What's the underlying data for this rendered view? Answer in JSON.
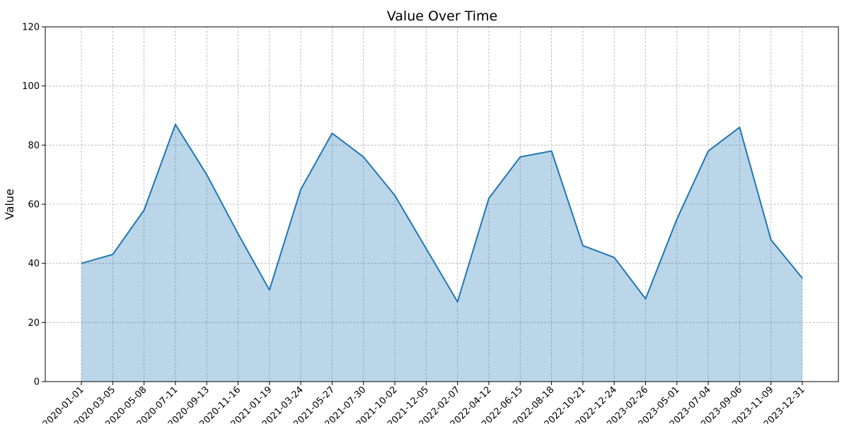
{
  "chart_data": {
    "type": "area",
    "title": "Value Over Time",
    "xlabel": "",
    "ylabel": "Value",
    "ylim": [
      0,
      120
    ],
    "yticks": [
      0,
      20,
      40,
      60,
      80,
      100,
      120
    ],
    "grid": true,
    "legend": "none",
    "line_color": "#1f77b4",
    "fill_color": "#1f77b4",
    "fill_alpha": 0.3,
    "x": [
      "2020-01-01",
      "2020-03-05",
      "2020-05-08",
      "2020-07-11",
      "2020-09-13",
      "2020-11-16",
      "2021-01-19",
      "2021-03-24",
      "2021-05-27",
      "2021-07-30",
      "2021-10-02",
      "2021-12-05",
      "2022-02-07",
      "2022-04-12",
      "2022-06-15",
      "2022-08-18",
      "2022-10-21",
      "2022-12-24",
      "2023-02-26",
      "2023-05-01",
      "2023-07-04",
      "2023-09-06",
      "2023-11-09",
      "2023-12-31"
    ],
    "values": [
      40,
      43,
      58,
      87,
      70,
      50,
      31,
      65,
      84,
      76,
      63,
      45,
      27,
      62,
      76,
      78,
      46,
      42,
      28,
      55,
      78,
      86,
      48,
      35
    ]
  }
}
